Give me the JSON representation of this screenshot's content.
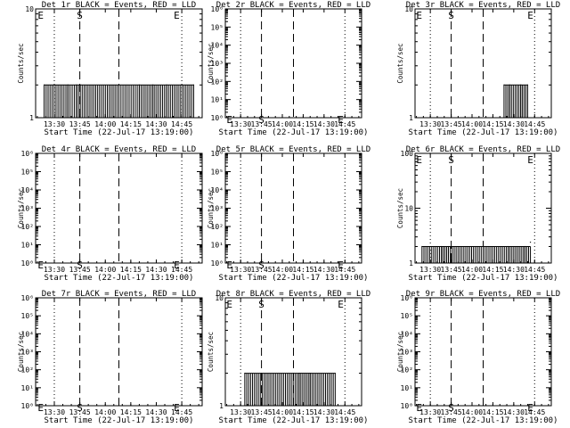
{
  "figure": {
    "xlabel": "Start Time (22-Jul-17 13:19:00)",
    "x_tick_labels": [
      "13:30",
      "13:45",
      "14:00",
      "14:15",
      "14:30",
      "14:45"
    ],
    "ylabel": "Counts/sec"
  },
  "chart_data": [
    {
      "type": "line",
      "title": "Det 1r BLACK = Events, RED = LLD",
      "ylabel": "Counts/sec",
      "yscale": "log",
      "ylim": [
        1,
        10
      ],
      "y_tick_labels": [
        "1",
        "10"
      ],
      "xlim": [
        "13:19",
        "14:57"
      ],
      "start_time": "22-Jul-17 13:19:00",
      "dotted_lines": [
        "13:30",
        "14:45"
      ],
      "dashed_lines": [
        "13:45",
        "14:08"
      ],
      "markers": [
        {
          "label": "E",
          "x": "13:22",
          "y": 10
        },
        {
          "label": "S",
          "x": "13:45",
          "y": 10
        },
        {
          "label": "E",
          "x": "14:42",
          "y": 10
        }
      ],
      "series": [
        {
          "values": [
            {
              "x": "13:24",
              "y": 2
            },
            {
              "x": "13:38",
              "y": 2
            },
            {
              "x": "13:43",
              "y": 2
            },
            {
              "x": "14:08",
              "y": 2
            },
            {
              "x": "14:20",
              "y": 2
            },
            {
              "x": "14:28",
              "y": 2
            },
            {
              "x": "14:36",
              "y": 2
            },
            {
              "x": "14:52",
              "y": 2
            }
          ]
        }
      ]
    },
    {
      "type": "line",
      "title": "Det 2r BLACK = Events, RED = LLD",
      "ylabel": "Counts/sec",
      "yscale": "log",
      "ylim": [
        1,
        1000000
      ],
      "y_tick_labels": [
        "10⁰",
        "10¹",
        "10²",
        "10³",
        "10⁴",
        "10⁵",
        "10⁶"
      ],
      "xlim": [
        "13:19",
        "14:57"
      ],
      "start_time": "22-Jul-17 13:19:00",
      "dotted_lines": [
        "13:30",
        "14:45"
      ],
      "dashed_lines": [
        "13:45",
        "14:08"
      ],
      "markers": [
        {
          "label": "E",
          "x": "13:22",
          "y": 1.8
        },
        {
          "label": "S",
          "x": "13:45",
          "y": 1.8
        },
        {
          "label": "E",
          "x": "14:42",
          "y": 1.8
        }
      ],
      "series": [
        {
          "values": []
        }
      ]
    },
    {
      "type": "line",
      "title": "Det 3r BLACK = Events, RED = LLD",
      "ylabel": "Counts/sec",
      "yscale": "log",
      "ylim": [
        1,
        10
      ],
      "y_tick_labels": [
        "1",
        "10"
      ],
      "xlim": [
        "13:19",
        "14:57"
      ],
      "start_time": "22-Jul-17 13:19:00",
      "dotted_lines": [
        "13:30",
        "14:45"
      ],
      "dashed_lines": [
        "13:45",
        "14:08"
      ],
      "markers": [
        {
          "label": "E",
          "x": "13:22",
          "y": 10
        },
        {
          "label": "S",
          "x": "13:45",
          "y": 10
        },
        {
          "label": "E",
          "x": "14:42",
          "y": 10
        }
      ],
      "series": [
        {
          "values": [
            {
              "x": "14:23",
              "y": 2
            },
            {
              "x": "14:27",
              "y": 2
            },
            {
              "x": "14:35",
              "y": 2
            },
            {
              "x": "14:40",
              "y": 2
            }
          ]
        }
      ]
    },
    {
      "type": "line",
      "title": "Det 4r BLACK = Events, RED = LLD",
      "ylabel": "Counts/sec",
      "yscale": "log",
      "ylim": [
        1,
        1000000
      ],
      "y_tick_labels": [
        "10⁰",
        "10¹",
        "10²",
        "10³",
        "10⁴",
        "10⁵",
        "10⁶"
      ],
      "xlim": [
        "13:19",
        "14:57"
      ],
      "start_time": "22-Jul-17 13:19:00",
      "dotted_lines": [
        "13:30",
        "14:45"
      ],
      "dashed_lines": [
        "13:45",
        "14:08"
      ],
      "markers": [
        {
          "label": "E",
          "x": "13:22",
          "y": 1.8
        },
        {
          "label": "S",
          "x": "13:45",
          "y": 1.8
        },
        {
          "label": "E",
          "x": "14:42",
          "y": 1.8
        }
      ],
      "series": [
        {
          "values": []
        }
      ]
    },
    {
      "type": "line",
      "title": "Det 5r BLACK = Events, RED = LLD",
      "ylabel": "Counts/sec",
      "yscale": "log",
      "ylim": [
        1,
        1000000
      ],
      "y_tick_labels": [
        "10⁰",
        "10¹",
        "10²",
        "10³",
        "10⁴",
        "10⁵",
        "10⁶"
      ],
      "xlim": [
        "13:19",
        "14:57"
      ],
      "start_time": "22-Jul-17 13:19:00",
      "dotted_lines": [
        "13:30",
        "14:45"
      ],
      "dashed_lines": [
        "13:45",
        "14:08"
      ],
      "markers": [
        {
          "label": "E",
          "x": "13:22",
          "y": 1.8
        },
        {
          "label": "S",
          "x": "13:45",
          "y": 1.8
        },
        {
          "label": "E",
          "x": "14:42",
          "y": 1.8
        }
      ],
      "series": [
        {
          "values": []
        }
      ]
    },
    {
      "type": "line",
      "title": "Det 6r BLACK = Events, RED = LLD",
      "ylabel": "Counts/sec",
      "yscale": "log",
      "ylim": [
        1,
        100
      ],
      "y_tick_labels": [
        "1",
        "10",
        "100"
      ],
      "xlim": [
        "13:19",
        "14:57"
      ],
      "start_time": "22-Jul-17 13:19:00",
      "dotted_lines": [
        "13:30",
        "14:45"
      ],
      "dashed_lines": [
        "13:45",
        "14:08"
      ],
      "markers": [
        {
          "label": "E",
          "x": "13:22",
          "y": 100
        },
        {
          "label": "S",
          "x": "13:45",
          "y": 100
        },
        {
          "label": "E",
          "x": "14:42",
          "y": 100
        }
      ],
      "series": [
        {
          "values": [
            {
              "x": "13:24",
              "y": 2
            },
            {
              "x": "13:38",
              "y": 2
            },
            {
              "x": "13:43",
              "y": 2
            },
            {
              "x": "14:08",
              "y": 2
            },
            {
              "x": "14:26",
              "y": 2
            },
            {
              "x": "14:38",
              "y": 2
            },
            {
              "x": "14:42",
              "y": 2.4
            }
          ]
        }
      ]
    },
    {
      "type": "line",
      "title": "Det 7r BLACK = Events, RED = LLD",
      "ylabel": "Counts/sec",
      "yscale": "log",
      "ylim": [
        1,
        1000000
      ],
      "y_tick_labels": [
        "10⁰",
        "10¹",
        "10²",
        "10³",
        "10⁴",
        "10⁵",
        "10⁶"
      ],
      "xlim": [
        "13:19",
        "14:57"
      ],
      "start_time": "22-Jul-17 13:19:00",
      "dotted_lines": [
        "13:30",
        "14:45"
      ],
      "dashed_lines": [
        "13:45",
        "14:08"
      ],
      "markers": [
        {
          "label": "E",
          "x": "13:22",
          "y": 1.8
        },
        {
          "label": "S",
          "x": "13:45",
          "y": 1.8
        },
        {
          "label": "E",
          "x": "14:42",
          "y": 1.8
        }
      ],
      "series": [
        {
          "values": []
        }
      ]
    },
    {
      "type": "line",
      "title": "Det 8r BLACK = Events, RED = LLD",
      "ylabel": "Counts/sec",
      "yscale": "log",
      "ylim": [
        1,
        10
      ],
      "y_tick_labels": [
        "1",
        "10"
      ],
      "xlim": [
        "13:19",
        "14:57"
      ],
      "start_time": "22-Jul-17 13:19:00",
      "dotted_lines": [
        "13:30",
        "14:45"
      ],
      "dashed_lines": [
        "13:45",
        "14:08"
      ],
      "markers": [
        {
          "label": "E",
          "x": "13:22",
          "y": 10
        },
        {
          "label": "S",
          "x": "13:45",
          "y": 10
        },
        {
          "label": "E",
          "x": "14:42",
          "y": 10
        }
      ],
      "series": [
        {
          "values": [
            {
              "x": "13:33",
              "y": 2
            },
            {
              "x": "14:12",
              "y": 2
            },
            {
              "x": "14:20",
              "y": 2
            },
            {
              "x": "14:38",
              "y": 2
            }
          ]
        }
      ]
    },
    {
      "type": "line",
      "title": "Det 9r BLACK = Events, RED = LLD",
      "ylabel": "Counts/sec",
      "yscale": "log",
      "ylim": [
        1,
        1000000
      ],
      "y_tick_labels": [
        "10⁰",
        "10¹",
        "10²",
        "10³",
        "10⁴",
        "10⁵",
        "10⁶"
      ],
      "xlim": [
        "13:19",
        "14:57"
      ],
      "start_time": "22-Jul-17 13:19:00",
      "dotted_lines": [
        "13:30",
        "14:45"
      ],
      "dashed_lines": [
        "13:45",
        "14:08"
      ],
      "markers": [
        {
          "label": "E",
          "x": "13:22",
          "y": 1.8
        },
        {
          "label": "S",
          "x": "13:45",
          "y": 1.8
        },
        {
          "label": "E",
          "x": "14:42",
          "y": 1.8
        }
      ],
      "series": [
        {
          "values": []
        }
      ]
    }
  ]
}
